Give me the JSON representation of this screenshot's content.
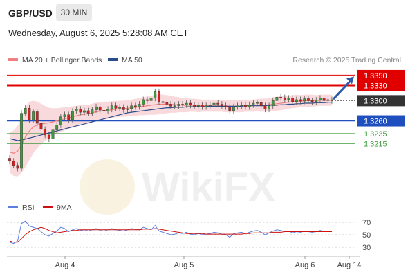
{
  "header": {
    "symbol": "GBP/USD",
    "timeframe": "30 MIN",
    "datetime": "Wednesday, August 6, 2025 5:28:08 AM CET"
  },
  "watermark": {
    "text": "WikiFX"
  },
  "colors": {
    "resistance": "#e00000",
    "support": "#1f4fbf",
    "target_green": "#3f9a3f",
    "current": "#333333",
    "ma20": "#f08080",
    "ma50": "#2b4c8c",
    "bollinger_fill": "#f8d4d6",
    "candle_up": "#3f9a3f",
    "candle_down": "#d02020",
    "rsi": "#5b7fe0",
    "rsi_ma": "#cc1111",
    "arrow": "#2b5aa8"
  },
  "chart_data": [
    {
      "type": "candlestick",
      "title": "",
      "legend": [
        {
          "name": "MA 20 + Bollinger Bands",
          "color": "#f08080"
        },
        {
          "name": "MA 50",
          "color": "#2b4c8c"
        }
      ],
      "credit": "Research © 2025 Trading Central",
      "x_ticks": [
        "Aug 4",
        "Aug 5",
        "Aug 6",
        "Aug 14"
      ],
      "ylim": [
        1.314,
        1.3365
      ],
      "levels": [
        {
          "value": 1.335,
          "label": "1.3350",
          "kind": "resistance"
        },
        {
          "value": 1.333,
          "label": "1.3330",
          "kind": "resistance"
        },
        {
          "value": 1.33,
          "label": "1.3300",
          "kind": "current"
        },
        {
          "value": 1.326,
          "label": "1.3260",
          "kind": "support"
        },
        {
          "value": 1.3235,
          "label": "1.3235",
          "kind": "target"
        },
        {
          "value": 1.3215,
          "label": "1.3215",
          "kind": "target"
        }
      ],
      "close_series": [
        1.318,
        1.3172,
        1.3166,
        1.3275,
        1.3285,
        1.3262,
        1.3278,
        1.3255,
        1.3243,
        1.3232,
        1.3224,
        1.3242,
        1.3252,
        1.3268,
        1.3272,
        1.3262,
        1.3279,
        1.3283,
        1.3277,
        1.328,
        1.3275,
        1.3282,
        1.3288,
        1.3281,
        1.3279,
        1.3283,
        1.329,
        1.3285,
        1.3287,
        1.3282,
        1.3284,
        1.329,
        1.3288,
        1.3293,
        1.3302,
        1.33,
        1.3305,
        1.3318,
        1.3298,
        1.3296,
        1.3293,
        1.3289,
        1.329,
        1.3293,
        1.3292,
        1.3295,
        1.3291,
        1.3289,
        1.3291,
        1.3288,
        1.329,
        1.3292,
        1.3295,
        1.3293,
        1.329,
        1.3288,
        1.328,
        1.3288,
        1.329,
        1.3292,
        1.3288,
        1.3292,
        1.3295,
        1.3296,
        1.329,
        1.3283,
        1.329,
        1.33,
        1.3307,
        1.3306,
        1.3302,
        1.3305,
        1.3298,
        1.3302,
        1.3299,
        1.3304,
        1.33,
        1.3298,
        1.3301,
        1.3305,
        1.33,
        1.3302,
        1.33
      ],
      "ma20_series": [
        1.3198,
        1.3196,
        1.32,
        1.3212,
        1.3228,
        1.324,
        1.3248,
        1.3252,
        1.3254,
        1.3255,
        1.3256,
        1.3258,
        1.326,
        1.3262,
        1.3264,
        1.3266,
        1.3268,
        1.327,
        1.3272,
        1.3273,
        1.3274,
        1.3276,
        1.3278,
        1.3279,
        1.328,
        1.3281,
        1.3282,
        1.3283,
        1.3284,
        1.3284,
        1.3285,
        1.3286,
        1.3287,
        1.3288,
        1.3289,
        1.329,
        1.3291,
        1.3292,
        1.3293,
        1.3293,
        1.3293,
        1.3293,
        1.3292,
        1.3292,
        1.3291,
        1.3291,
        1.3291,
        1.3291,
        1.329,
        1.329,
        1.329,
        1.329,
        1.329,
        1.329,
        1.329,
        1.3289,
        1.3289,
        1.3289,
        1.3289,
        1.3289,
        1.329,
        1.329,
        1.329,
        1.3291,
        1.3291,
        1.3291,
        1.3292,
        1.3293,
        1.3294,
        1.3295,
        1.3296,
        1.3297,
        1.3298,
        1.3299,
        1.3299,
        1.33,
        1.33,
        1.33,
        1.33,
        1.3301,
        1.3301,
        1.3301,
        1.3301
      ],
      "ma50_series": [
        1.3225,
        1.3223,
        1.3221,
        1.3222,
        1.3224,
        1.3226,
        1.3228,
        1.323,
        1.3232,
        1.3234,
        1.3236,
        1.3238,
        1.324,
        1.3242,
        1.3244,
        1.3246,
        1.3248,
        1.325,
        1.3252,
        1.3254,
        1.3256,
        1.3258,
        1.326,
        1.3262,
        1.3264,
        1.3266,
        1.3268,
        1.327,
        1.3272,
        1.3274,
        1.3276,
        1.3277,
        1.3278,
        1.3279,
        1.328,
        1.3281,
        1.3282,
        1.3283,
        1.3284,
        1.3285,
        1.3286,
        1.3286,
        1.3287,
        1.3287,
        1.3287,
        1.3288,
        1.3288,
        1.3288,
        1.3288,
        1.3288,
        1.3289,
        1.3289,
        1.3289,
        1.3289,
        1.3289,
        1.3289,
        1.3289,
        1.3289,
        1.3289,
        1.3289,
        1.329,
        1.329,
        1.329,
        1.329,
        1.329,
        1.329,
        1.3291,
        1.3291,
        1.3291,
        1.3292,
        1.3292,
        1.3293,
        1.3293,
        1.3294,
        1.3294,
        1.3295,
        1.3295,
        1.3295,
        1.3296,
        1.3296,
        1.3296,
        1.3297,
        1.3297
      ],
      "bollinger_halfwidth": [
        0.004,
        0.0045,
        0.005,
        0.0055,
        0.006,
        0.0058,
        0.0052,
        0.0046,
        0.004,
        0.0035,
        0.003,
        0.0027,
        0.0025,
        0.0024,
        0.0023,
        0.0022,
        0.0021,
        0.002,
        0.0019,
        0.0018,
        0.0018,
        0.0018,
        0.0018,
        0.0018,
        0.0018,
        0.0017,
        0.0017,
        0.0016,
        0.0016,
        0.0016,
        0.0016,
        0.0016,
        0.0017,
        0.0017,
        0.0018,
        0.0018,
        0.0019,
        0.002,
        0.002,
        0.0019,
        0.0018,
        0.0017,
        0.0016,
        0.0015,
        0.0014,
        0.0014,
        0.0013,
        0.0013,
        0.0013,
        0.0012,
        0.0012,
        0.0012,
        0.0012,
        0.0012,
        0.0012,
        0.0012,
        0.0012,
        0.0012,
        0.0012,
        0.0012,
        0.0012,
        0.0012,
        0.0012,
        0.0012,
        0.0013,
        0.0013,
        0.0013,
        0.0014,
        0.0014,
        0.0014,
        0.0014,
        0.0013,
        0.0013,
        0.0013,
        0.0012,
        0.0012,
        0.0012,
        0.0012,
        0.0011,
        0.0011,
        0.0011,
        0.0011,
        0.0011
      ]
    },
    {
      "type": "line",
      "title": "",
      "legend": [
        {
          "name": "RSI",
          "color": "#5b7fe0"
        },
        {
          "name": "9MA",
          "color": "#cc1111"
        }
      ],
      "y_ticks": [
        70,
        50,
        30
      ],
      "ylim": [
        20,
        80
      ],
      "rsi_series": [
        38,
        36,
        40,
        68,
        72,
        64,
        62,
        60,
        55,
        50,
        48,
        52,
        56,
        62,
        60,
        55,
        58,
        60,
        57,
        58,
        56,
        58,
        60,
        57,
        56,
        58,
        60,
        58,
        57,
        56,
        58,
        60,
        59,
        58,
        62,
        60,
        58,
        65,
        56,
        54,
        52,
        50,
        51,
        53,
        52,
        54,
        51,
        50,
        52,
        50,
        51,
        52,
        54,
        53,
        51,
        50,
        46,
        52,
        53,
        54,
        52,
        54,
        56,
        57,
        54,
        50,
        53,
        56,
        58,
        57,
        55,
        56,
        53,
        55,
        54,
        56,
        55,
        54,
        55,
        57,
        55,
        56,
        55
      ],
      "ma9_series": [
        40,
        38,
        38,
        44,
        50,
        55,
        58,
        60,
        62,
        60,
        57,
        55,
        53,
        54,
        55,
        56,
        57,
        57,
        58,
        58,
        58,
        58,
        58,
        58,
        58,
        58,
        58,
        58,
        58,
        58,
        58,
        58,
        58,
        58,
        59,
        59,
        59,
        60,
        59,
        58,
        57,
        56,
        55,
        54,
        53,
        52,
        52,
        52,
        52,
        52,
        51,
        51,
        51,
        51,
        51,
        51,
        51,
        51,
        51,
        51,
        52,
        52,
        53,
        53,
        53,
        53,
        53,
        54,
        54,
        54,
        55,
        55,
        55,
        55,
        55,
        55,
        55,
        55,
        55,
        55,
        55,
        55,
        55
      ]
    }
  ]
}
